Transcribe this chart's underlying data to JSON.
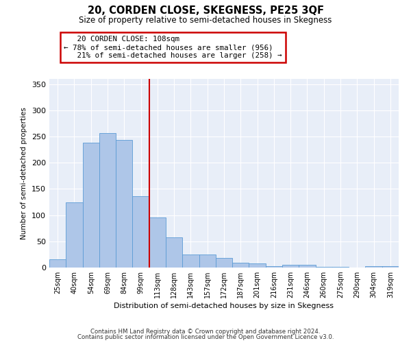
{
  "title": "20, CORDEN CLOSE, SKEGNESS, PE25 3QF",
  "subtitle": "Size of property relative to semi-detached houses in Skegness",
  "xlabel": "Distribution of semi-detached houses by size in Skegness",
  "ylabel": "Number of semi-detached properties",
  "categories": [
    "25sqm",
    "40sqm",
    "54sqm",
    "69sqm",
    "84sqm",
    "99sqm",
    "113sqm",
    "128sqm",
    "143sqm",
    "157sqm",
    "172sqm",
    "187sqm",
    "201sqm",
    "216sqm",
    "231sqm",
    "246sqm",
    "260sqm",
    "275sqm",
    "290sqm",
    "304sqm",
    "319sqm"
  ],
  "values": [
    16,
    124,
    238,
    257,
    243,
    136,
    95,
    57,
    25,
    25,
    18,
    9,
    8,
    3,
    5,
    5,
    1,
    1,
    0,
    3,
    2
  ],
  "bar_color": "#aec6e8",
  "bar_edge_color": "#5b9bd5",
  "property_label": "20 CORDEN CLOSE: 108sqm",
  "pct_smaller": 78,
  "pct_smaller_count": 956,
  "pct_larger": 21,
  "pct_larger_count": 258,
  "vline_x_index": 5.5,
  "ylim": [
    0,
    360
  ],
  "yticks": [
    0,
    50,
    100,
    150,
    200,
    250,
    300,
    350
  ],
  "annotation_box_color": "#ffffff",
  "annotation_box_edge": "#cc0000",
  "vline_color": "#cc0000",
  "bg_color": "#e8eef8",
  "footer1": "Contains HM Land Registry data © Crown copyright and database right 2024.",
  "footer2": "Contains public sector information licensed under the Open Government Licence v3.0."
}
